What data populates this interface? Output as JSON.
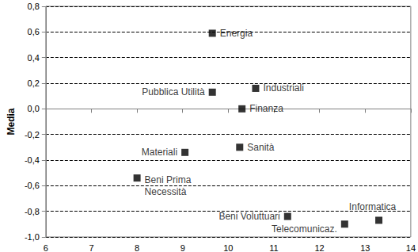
{
  "chart_data": {
    "type": "scatter",
    "ylabel": "Media",
    "points": [
      {
        "label": "Energia",
        "x": 9.65,
        "y": 0.59
      },
      {
        "label": "Pubblica Utilità",
        "x": 9.65,
        "y": 0.13
      },
      {
        "label": "Industriali",
        "x": 10.6,
        "y": 0.16
      },
      {
        "label": "Finanza",
        "x": 10.3,
        "y": 0.0
      },
      {
        "label": "Materiali",
        "x": 9.05,
        "y": -0.34
      },
      {
        "label": "Sanità",
        "x": 10.25,
        "y": -0.3
      },
      {
        "label": "Beni Prima\nNecessità",
        "x": 8.0,
        "y": -0.54
      },
      {
        "label": "Beni Voluttuari",
        "x": 11.3,
        "y": -0.84
      },
      {
        "label": "Telecomunicaz.",
        "x": 12.55,
        "y": -0.9
      },
      {
        "label": "Informatica",
        "x": 13.3,
        "y": -0.87
      }
    ],
    "xlim": [
      6,
      14
    ],
    "xticks": [
      6,
      7,
      8,
      9,
      10,
      11,
      12,
      13,
      14
    ],
    "ylim": [
      -1.0,
      0.8
    ],
    "yticks": [
      {
        "value": -1.0,
        "label": "-1,0"
      },
      {
        "value": -0.8,
        "label": "-0,8"
      },
      {
        "value": -0.6,
        "label": "-0,6"
      },
      {
        "value": -0.4,
        "label": "-0,4"
      },
      {
        "value": -0.2,
        "label": "-0,2"
      },
      {
        "value": 0.0,
        "label": "0,0"
      },
      {
        "value": 0.2,
        "label": "0,2"
      },
      {
        "value": 0.4,
        "label": "0,4"
      },
      {
        "value": 0.6,
        "label": "0,6"
      },
      {
        "value": 0.8,
        "label": "0,8"
      }
    ],
    "color": "#000000",
    "marker": "square",
    "grid": true,
    "data_labels": true
  }
}
